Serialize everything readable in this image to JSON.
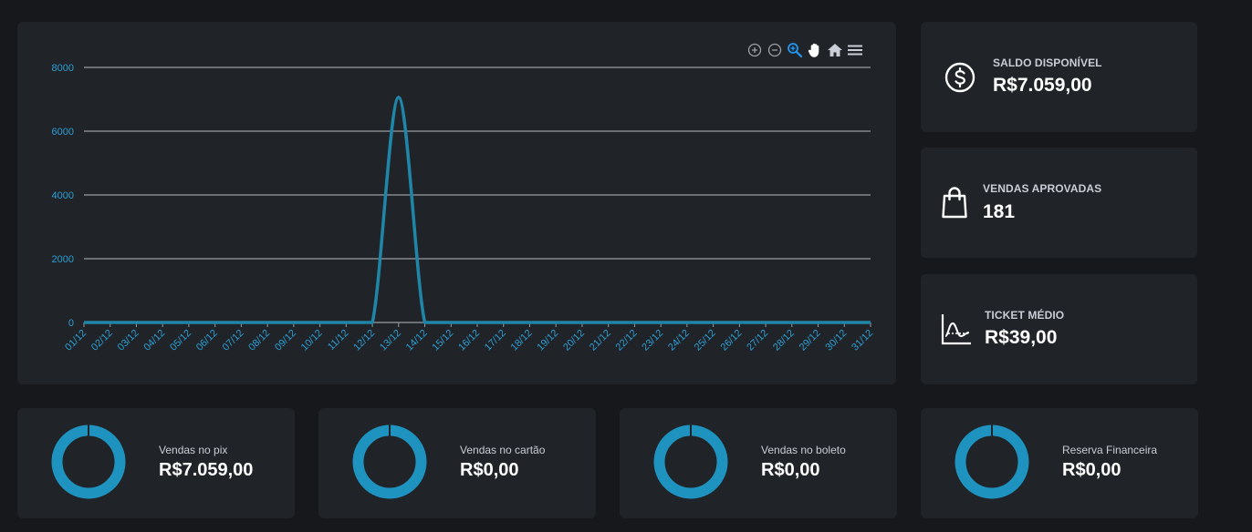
{
  "toolbar": {
    "icons": [
      "zoom-in-icon",
      "zoom-out-icon",
      "selection-zoom-icon",
      "pan-hand-icon",
      "home-reset-icon",
      "menu-icon"
    ]
  },
  "chart_data": {
    "type": "line",
    "title": "",
    "xlabel": "",
    "ylabel": "",
    "categories": [
      "01/12",
      "02/12",
      "03/12",
      "04/12",
      "05/12",
      "06/12",
      "07/12",
      "08/12",
      "09/12",
      "10/12",
      "11/12",
      "12/12",
      "13/12",
      "14/12",
      "15/12",
      "16/12",
      "17/12",
      "18/12",
      "19/12",
      "20/12",
      "21/12",
      "22/12",
      "23/12",
      "24/12",
      "25/12",
      "26/12",
      "27/12",
      "28/12",
      "29/12",
      "30/12",
      "31/12"
    ],
    "values": [
      0,
      0,
      0,
      0,
      0,
      0,
      0,
      0,
      0,
      0,
      0,
      0,
      7059,
      0,
      0,
      0,
      0,
      0,
      0,
      0,
      0,
      0,
      0,
      0,
      0,
      0,
      0,
      0,
      0,
      0,
      0
    ],
    "yticks": [
      0,
      2000,
      4000,
      6000,
      8000
    ],
    "ylim": [
      0,
      8000
    ],
    "grid": true,
    "line_color": "#1f86a8",
    "tick_color": "#2a9fd6"
  },
  "stats": {
    "saldo": {
      "label": "SALDO DISPONÍVEL",
      "value": "R$7.059,00"
    },
    "vendas": {
      "label": "VENDAS APROVADAS",
      "value": "181"
    },
    "ticket": {
      "label": "TICKET MÉDIO",
      "value": "R$39,00"
    }
  },
  "payments": {
    "pix": {
      "label": "Vendas no pix",
      "value": "R$7.059,00"
    },
    "cartao": {
      "label": "Vendas no cartão",
      "value": "R$0,00"
    },
    "boleto": {
      "label": "Vendas no boleto",
      "value": "R$0,00"
    },
    "reserva": {
      "label": "Reserva Financeira",
      "value": "R$0,00"
    }
  },
  "colors": {
    "background": "#16181b",
    "card": "#202327",
    "accent": "#1f93bf",
    "gridline": "#9a9ea4"
  }
}
